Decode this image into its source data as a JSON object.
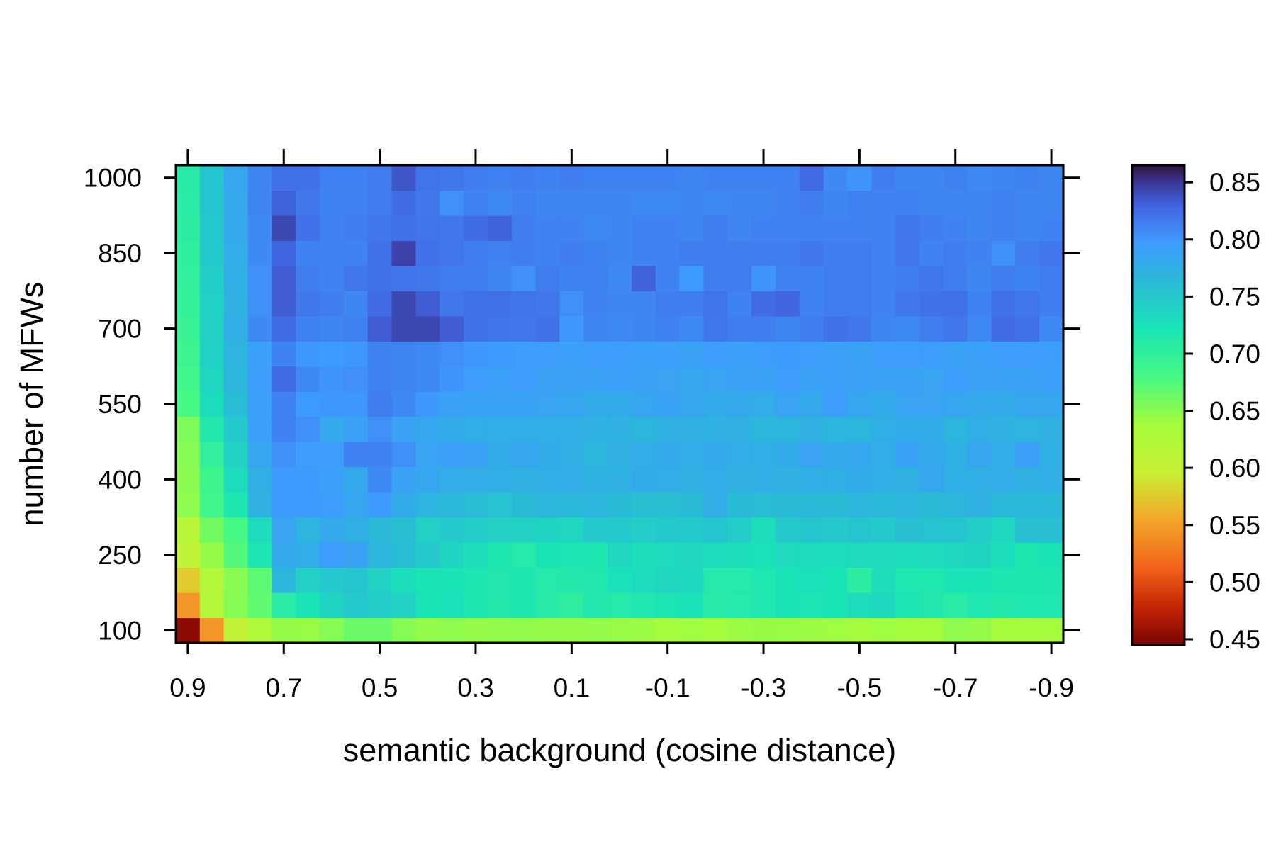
{
  "chart_data": {
    "type": "heatmap",
    "title": "",
    "xlabel": "semantic background (cosine distance)",
    "ylabel": "number of MFWs",
    "x_ticks": [
      "0.9",
      "0.7",
      "0.5",
      "0.3",
      "0.1",
      "-0.1",
      "-0.3",
      "-0.5",
      "-0.7",
      "-0.9"
    ],
    "y_ticks": [
      "100",
      "250",
      "400",
      "550",
      "700",
      "850",
      "1000"
    ],
    "colorbar_ticks": [
      "0.45",
      "0.50",
      "0.55",
      "0.60",
      "0.65",
      "0.70",
      "0.75",
      "0.80",
      "0.85"
    ],
    "x_values": [
      0.9,
      0.85,
      0.8,
      0.75,
      0.7,
      0.65,
      0.6,
      0.55,
      0.5,
      0.45,
      0.4,
      0.35,
      0.3,
      0.25,
      0.2,
      0.15,
      0.1,
      0.05,
      0.0,
      -0.05,
      -0.1,
      -0.15,
      -0.2,
      -0.25,
      -0.3,
      -0.35,
      -0.4,
      -0.45,
      -0.5,
      -0.55,
      -0.6,
      -0.65,
      -0.7,
      -0.75,
      -0.8,
      -0.85,
      -0.9
    ],
    "y_values": [
      100,
      150,
      200,
      250,
      300,
      350,
      400,
      450,
      500,
      550,
      600,
      650,
      700,
      750,
      800,
      850,
      900,
      950,
      1000
    ],
    "zlim": [
      0.445,
      0.865
    ],
    "grid": false,
    "legend": "colorbar-right",
    "values": [
      [
        0.453,
        0.545,
        0.602,
        0.628,
        0.645,
        0.643,
        0.652,
        0.664,
        0.664,
        0.652,
        0.646,
        0.648,
        0.645,
        0.646,
        0.647,
        0.645,
        0.645,
        0.646,
        0.643,
        0.642,
        0.638,
        0.64,
        0.638,
        0.642,
        0.644,
        0.643,
        0.642,
        0.641,
        0.636,
        0.641,
        0.638,
        0.638,
        0.648,
        0.645,
        0.636,
        0.636,
        0.638
      ],
      [
        0.545,
        0.62,
        0.652,
        0.668,
        0.708,
        0.722,
        0.738,
        0.748,
        0.745,
        0.74,
        0.722,
        0.725,
        0.718,
        0.713,
        0.718,
        0.71,
        0.703,
        0.715,
        0.712,
        0.716,
        0.72,
        0.725,
        0.71,
        0.712,
        0.716,
        0.722,
        0.72,
        0.722,
        0.73,
        0.733,
        0.72,
        0.715,
        0.708,
        0.716,
        0.714,
        0.716,
        0.716
      ],
      [
        0.575,
        0.622,
        0.65,
        0.67,
        0.768,
        0.742,
        0.75,
        0.752,
        0.74,
        0.728,
        0.722,
        0.722,
        0.718,
        0.715,
        0.718,
        0.712,
        0.713,
        0.715,
        0.725,
        0.73,
        0.735,
        0.733,
        0.712,
        0.712,
        0.716,
        0.722,
        0.725,
        0.722,
        0.705,
        0.728,
        0.716,
        0.716,
        0.722,
        0.722,
        0.718,
        0.718,
        0.718
      ],
      [
        0.605,
        0.645,
        0.675,
        0.72,
        0.782,
        0.778,
        0.795,
        0.79,
        0.768,
        0.76,
        0.75,
        0.738,
        0.728,
        0.718,
        0.712,
        0.722,
        0.72,
        0.718,
        0.735,
        0.728,
        0.732,
        0.735,
        0.73,
        0.728,
        0.725,
        0.732,
        0.73,
        0.73,
        0.732,
        0.732,
        0.73,
        0.732,
        0.735,
        0.738,
        0.728,
        0.718,
        0.722
      ],
      [
        0.615,
        0.66,
        0.68,
        0.73,
        0.788,
        0.77,
        0.782,
        0.775,
        0.765,
        0.758,
        0.742,
        0.748,
        0.745,
        0.742,
        0.74,
        0.738,
        0.735,
        0.748,
        0.748,
        0.745,
        0.748,
        0.748,
        0.752,
        0.745,
        0.728,
        0.748,
        0.752,
        0.75,
        0.752,
        0.748,
        0.758,
        0.755,
        0.752,
        0.745,
        0.735,
        0.758,
        0.758
      ],
      [
        0.648,
        0.685,
        0.718,
        0.772,
        0.798,
        0.798,
        0.795,
        0.785,
        0.798,
        0.78,
        0.77,
        0.765,
        0.76,
        0.755,
        0.762,
        0.768,
        0.765,
        0.768,
        0.762,
        0.758,
        0.758,
        0.762,
        0.778,
        0.762,
        0.76,
        0.762,
        0.765,
        0.762,
        0.768,
        0.765,
        0.768,
        0.762,
        0.768,
        0.772,
        0.765,
        0.765,
        0.765
      ],
      [
        0.65,
        0.688,
        0.73,
        0.775,
        0.798,
        0.798,
        0.792,
        0.782,
        0.808,
        0.79,
        0.785,
        0.778,
        0.778,
        0.775,
        0.772,
        0.775,
        0.778,
        0.772,
        0.772,
        0.78,
        0.778,
        0.772,
        0.778,
        0.772,
        0.775,
        0.772,
        0.775,
        0.775,
        0.78,
        0.775,
        0.772,
        0.785,
        0.775,
        0.775,
        0.778,
        0.772,
        0.775
      ],
      [
        0.652,
        0.7,
        0.74,
        0.785,
        0.805,
        0.795,
        0.795,
        0.812,
        0.812,
        0.805,
        0.788,
        0.792,
        0.79,
        0.78,
        0.785,
        0.78,
        0.775,
        0.768,
        0.772,
        0.778,
        0.782,
        0.778,
        0.782,
        0.778,
        0.775,
        0.78,
        0.788,
        0.782,
        0.785,
        0.778,
        0.79,
        0.782,
        0.775,
        0.785,
        0.778,
        0.792,
        0.775
      ],
      [
        0.655,
        0.715,
        0.75,
        0.792,
        0.812,
        0.805,
        0.782,
        0.79,
        0.805,
        0.79,
        0.785,
        0.78,
        0.775,
        0.775,
        0.775,
        0.775,
        0.775,
        0.772,
        0.772,
        0.768,
        0.772,
        0.772,
        0.772,
        0.772,
        0.768,
        0.768,
        0.772,
        0.768,
        0.768,
        0.775,
        0.78,
        0.78,
        0.768,
        0.775,
        0.772,
        0.77,
        0.772
      ],
      [
        0.68,
        0.73,
        0.76,
        0.792,
        0.812,
        0.798,
        0.8,
        0.8,
        0.815,
        0.808,
        0.8,
        0.79,
        0.79,
        0.79,
        0.79,
        0.788,
        0.785,
        0.78,
        0.78,
        0.785,
        0.79,
        0.785,
        0.78,
        0.782,
        0.778,
        0.788,
        0.782,
        0.795,
        0.785,
        0.78,
        0.788,
        0.788,
        0.785,
        0.782,
        0.78,
        0.785,
        0.785
      ],
      [
        0.685,
        0.735,
        0.768,
        0.795,
        0.825,
        0.808,
        0.802,
        0.805,
        0.812,
        0.81,
        0.808,
        0.802,
        0.795,
        0.792,
        0.795,
        0.79,
        0.79,
        0.79,
        0.792,
        0.79,
        0.788,
        0.785,
        0.788,
        0.79,
        0.79,
        0.795,
        0.79,
        0.792,
        0.79,
        0.79,
        0.79,
        0.788,
        0.795,
        0.79,
        0.79,
        0.79,
        0.792
      ],
      [
        0.69,
        0.74,
        0.77,
        0.792,
        0.812,
        0.8,
        0.798,
        0.8,
        0.812,
        0.81,
        0.808,
        0.805,
        0.8,
        0.798,
        0.795,
        0.795,
        0.792,
        0.795,
        0.795,
        0.792,
        0.792,
        0.79,
        0.795,
        0.792,
        0.795,
        0.798,
        0.795,
        0.792,
        0.79,
        0.795,
        0.795,
        0.795,
        0.79,
        0.792,
        0.795,
        0.795,
        0.795
      ],
      [
        0.695,
        0.742,
        0.775,
        0.808,
        0.825,
        0.812,
        0.81,
        0.812,
        0.832,
        0.842,
        0.842,
        0.832,
        0.822,
        0.82,
        0.818,
        0.822,
        0.8,
        0.81,
        0.808,
        0.81,
        0.812,
        0.808,
        0.818,
        0.815,
        0.815,
        0.81,
        0.815,
        0.822,
        0.818,
        0.81,
        0.808,
        0.815,
        0.818,
        0.808,
        0.825,
        0.822,
        0.808
      ],
      [
        0.698,
        0.74,
        0.772,
        0.805,
        0.832,
        0.818,
        0.815,
        0.81,
        0.825,
        0.842,
        0.832,
        0.818,
        0.822,
        0.822,
        0.82,
        0.818,
        0.805,
        0.812,
        0.81,
        0.81,
        0.815,
        0.815,
        0.82,
        0.812,
        0.825,
        0.828,
        0.812,
        0.815,
        0.815,
        0.812,
        0.818,
        0.822,
        0.822,
        0.812,
        0.822,
        0.818,
        0.815
      ],
      [
        0.7,
        0.745,
        0.775,
        0.805,
        0.832,
        0.815,
        0.812,
        0.818,
        0.822,
        0.82,
        0.818,
        0.815,
        0.815,
        0.81,
        0.805,
        0.815,
        0.812,
        0.812,
        0.808,
        0.83,
        0.812,
        0.798,
        0.815,
        0.815,
        0.802,
        0.812,
        0.812,
        0.815,
        0.815,
        0.812,
        0.815,
        0.818,
        0.815,
        0.81,
        0.815,
        0.812,
        0.815
      ],
      [
        0.702,
        0.748,
        0.778,
        0.808,
        0.828,
        0.812,
        0.812,
        0.812,
        0.822,
        0.845,
        0.822,
        0.818,
        0.815,
        0.812,
        0.815,
        0.812,
        0.815,
        0.812,
        0.81,
        0.812,
        0.812,
        0.815,
        0.815,
        0.815,
        0.815,
        0.815,
        0.818,
        0.815,
        0.815,
        0.812,
        0.818,
        0.812,
        0.815,
        0.812,
        0.805,
        0.815,
        0.818
      ],
      [
        0.705,
        0.75,
        0.782,
        0.808,
        0.842,
        0.822,
        0.812,
        0.815,
        0.818,
        0.822,
        0.82,
        0.818,
        0.825,
        0.83,
        0.815,
        0.812,
        0.812,
        0.808,
        0.81,
        0.812,
        0.812,
        0.81,
        0.815,
        0.81,
        0.812,
        0.812,
        0.812,
        0.812,
        0.812,
        0.812,
        0.818,
        0.815,
        0.812,
        0.81,
        0.812,
        0.81,
        0.812
      ],
      [
        0.708,
        0.752,
        0.782,
        0.81,
        0.83,
        0.818,
        0.812,
        0.812,
        0.815,
        0.825,
        0.818,
        0.805,
        0.812,
        0.808,
        0.812,
        0.81,
        0.81,
        0.81,
        0.81,
        0.808,
        0.808,
        0.81,
        0.808,
        0.81,
        0.81,
        0.812,
        0.815,
        0.81,
        0.812,
        0.812,
        0.812,
        0.81,
        0.81,
        0.81,
        0.812,
        0.81,
        0.81
      ],
      [
        0.71,
        0.752,
        0.785,
        0.81,
        0.822,
        0.822,
        0.812,
        0.812,
        0.815,
        0.835,
        0.82,
        0.818,
        0.815,
        0.812,
        0.815,
        0.812,
        0.815,
        0.812,
        0.812,
        0.812,
        0.812,
        0.81,
        0.812,
        0.812,
        0.812,
        0.812,
        0.825,
        0.808,
        0.802,
        0.815,
        0.81,
        0.81,
        0.812,
        0.808,
        0.81,
        0.812,
        0.81
      ]
    ]
  }
}
